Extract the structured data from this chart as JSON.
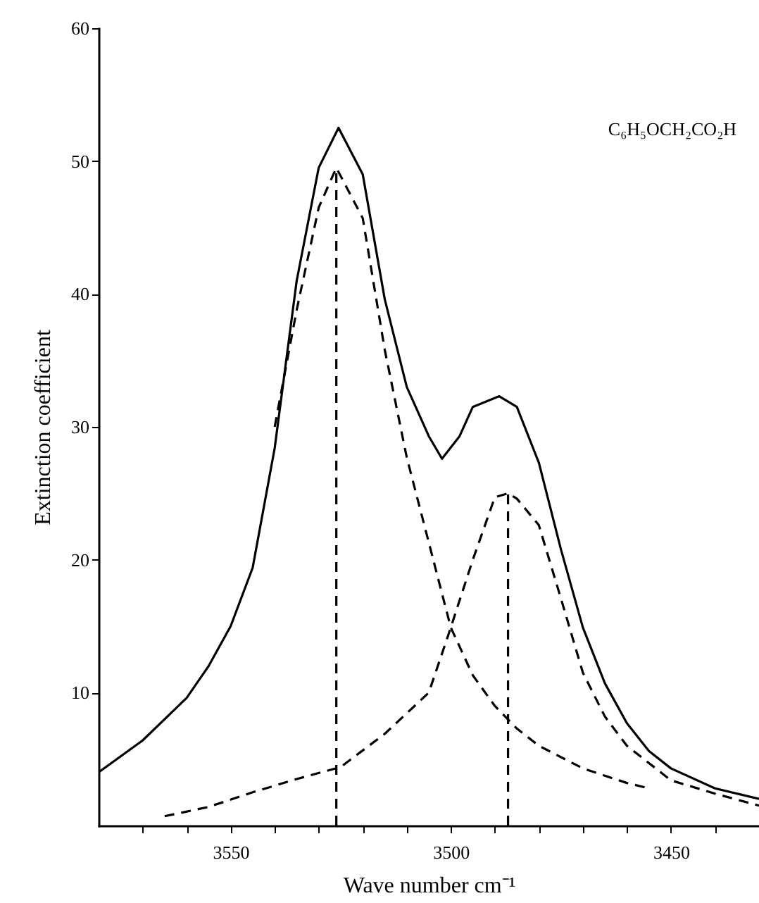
{
  "chart_data": {
    "type": "line",
    "xlabel": "Wave number cm⁻¹",
    "ylabel": "Extinction coefficient",
    "annotations": [
      "C₆H₅OCH₂CO₂H"
    ],
    "xlim": [
      3580,
      3430
    ],
    "ylim": [
      0,
      60
    ],
    "xticks": [
      {
        "value": 3570,
        "label": null
      },
      {
        "value": 3560,
        "label": null
      },
      3550,
      {
        "value": 3540,
        "label": null
      },
      {
        "value": 3530,
        "label": null
      },
      {
        "value": 3520,
        "label": null
      },
      {
        "value": 3510,
        "label": null
      },
      3500,
      {
        "value": 3490,
        "label": null
      },
      {
        "value": 3480,
        "label": null
      },
      {
        "value": 3470,
        "label": null
      },
      {
        "value": 3460,
        "label": null
      },
      3450,
      {
        "value": 3440,
        "label": null
      }
    ],
    "yticks": [
      10,
      20,
      30,
      40,
      50,
      60
    ],
    "grid": false,
    "series": [
      {
        "color": "#000000",
        "line_style": "solid",
        "x": [
          3580,
          3570,
          3560,
          3555,
          3550,
          3545,
          3540,
          3535,
          3530,
          3525.5,
          3520,
          3515,
          3510,
          3505,
          3502,
          3498,
          3495,
          3489,
          3485,
          3480,
          3475,
          3470,
          3465,
          3460,
          3455,
          3450,
          3440,
          3430
        ],
        "values": [
          4.0,
          6.4,
          9.6,
          12,
          15,
          19.4,
          28.4,
          41,
          49.5,
          52.5,
          49,
          39.6,
          33,
          29.3,
          27.6,
          29.3,
          31.5,
          32.3,
          31.5,
          27.3,
          20.8,
          14.9,
          10.7,
          7.7,
          5.6,
          4.3,
          2.8,
          2.0
        ]
      },
      {
        "color": "#000000",
        "line_style": "dashed",
        "x": [
          3540,
          3535,
          3530,
          3526,
          3520,
          3515,
          3510,
          3505,
          3500,
          3495,
          3490,
          3485,
          3480,
          3470,
          3460,
          3455
        ],
        "values": [
          30,
          38.8,
          46.5,
          49.5,
          45.7,
          35.8,
          27.7,
          21.3,
          14.9,
          11.3,
          9,
          7.3,
          6,
          4.3,
          3.2,
          2.8
        ]
      },
      {
        "color": "#000000",
        "line_style": "dashed",
        "x": [
          3565,
          3555,
          3545,
          3535,
          3525,
          3515,
          3505,
          3500,
          3495,
          3490,
          3487,
          3485,
          3480,
          3475,
          3470,
          3465,
          3460,
          3450,
          3440,
          3430
        ],
        "values": [
          0.7,
          1.4,
          2.5,
          3.5,
          4.4,
          6.9,
          10,
          14.9,
          20,
          24.7,
          25,
          24.6,
          22.6,
          17.1,
          11.5,
          8.2,
          6,
          3.4,
          2.4,
          1.5
        ]
      },
      {
        "color": "#000000",
        "line_style": "dashed",
        "x": [
          3526,
          3526
        ],
        "values": [
          0,
          49.5
        ]
      },
      {
        "color": "#000000",
        "line_style": "dashed",
        "x": [
          3487,
          3487
        ],
        "values": [
          0,
          25
        ]
      }
    ]
  }
}
